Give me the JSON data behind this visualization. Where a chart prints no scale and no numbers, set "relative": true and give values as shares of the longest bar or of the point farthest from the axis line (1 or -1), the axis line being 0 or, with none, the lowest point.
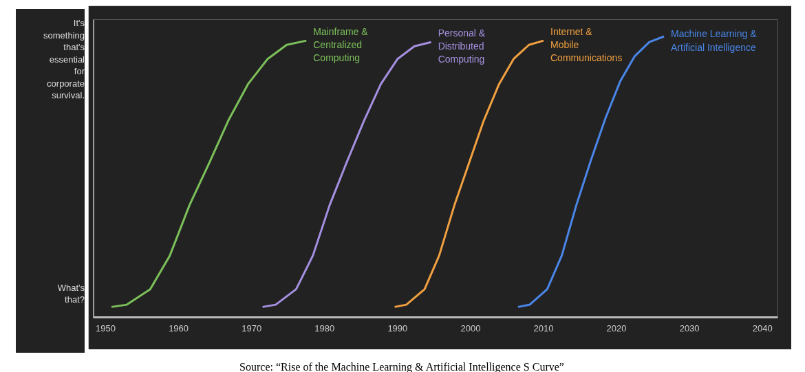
{
  "chart_data": {
    "type": "line",
    "relative": true,
    "xlim": [
      1948.3,
      2042.1
    ],
    "xticks": [
      1950,
      1960,
      1970,
      1980,
      1990,
      2000,
      2010,
      2020,
      2030,
      2040
    ],
    "grid": false,
    "marker": "none",
    "line_style": "solid",
    "series": [
      {
        "name": "Mainframe &\nCentralized\nComputing",
        "color": "#7cc05a",
        "x": [
          1950.8,
          1952.9,
          1956.1,
          1958.8,
          1961.5,
          1964.2,
          1966.8,
          1969.5,
          1972.2,
          1974.8,
          1977.5
        ],
        "values": [
          0.037,
          0.045,
          0.1,
          0.22,
          0.4,
          0.55,
          0.7,
          0.83,
          0.92,
          0.97,
          0.985
        ]
      },
      {
        "name": "Personal &\nDistributed\nComputing",
        "color": "#a58fe0",
        "x": [
          1971.5,
          1973.3,
          1976.1,
          1978.4,
          1980.7,
          1983.0,
          1985.4,
          1987.7,
          1990.0,
          1992.3,
          1994.6
        ],
        "values": [
          0.037,
          0.045,
          0.1,
          0.22,
          0.4,
          0.55,
          0.7,
          0.83,
          0.92,
          0.965,
          0.98
        ]
      },
      {
        "name": "Internet &\nMobile\nCommunications",
        "color": "#f0a040",
        "x": [
          1989.6,
          1991.2,
          1993.7,
          1995.7,
          1997.8,
          1999.8,
          2001.8,
          2003.9,
          2005.9,
          2008.0,
          2010.0
        ],
        "values": [
          0.037,
          0.045,
          0.1,
          0.22,
          0.4,
          0.55,
          0.7,
          0.83,
          0.92,
          0.97,
          0.985
        ]
      },
      {
        "name": "Machine Learning &\nArtificial Intelligence",
        "color": "#4a86e8",
        "x": [
          2006.5,
          2008.1,
          2010.5,
          2012.5,
          2014.5,
          2016.5,
          2018.5,
          2020.5,
          2022.5,
          2024.5,
          2026.5
        ],
        "values": [
          0.037,
          0.045,
          0.1,
          0.22,
          0.4,
          0.56,
          0.71,
          0.84,
          0.93,
          0.98,
          1.0
        ]
      }
    ],
    "annotations": [
      "It's something that's essential for corporate survival.",
      "What's that?",
      "Source: “Rise of the Machine Learning & Artificial Intelligence S Curve”"
    ]
  }
}
